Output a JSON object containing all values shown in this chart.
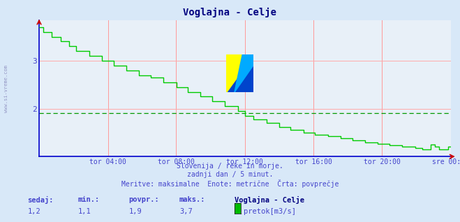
{
  "title": "Voglajna - Celje",
  "bg_color": "#d8e8f8",
  "plot_bg_color": "#e8f0f8",
  "line_color": "#00cc00",
  "avg_line_color": "#009900",
  "avg_value": 1.9,
  "ymin": 1.0,
  "ymax": 3.85,
  "yticks": [
    2,
    3
  ],
  "title_color": "#000080",
  "text_color": "#4444cc",
  "subtitle_lines": [
    "Slovenija / reke in morje.",
    "zadnji dan / 5 minut.",
    "Meritve: maksimalne  Enote: metrične  Črta: povprečje"
  ],
  "footer_labels": [
    "sedaj:",
    "min.:",
    "povpr.:",
    "maks.:"
  ],
  "footer_values": [
    "1,2",
    "1,1",
    "1,9",
    "3,7"
  ],
  "station_name": "Voglajna - Celje",
  "legend_label": "pretok[m3/s]",
  "legend_color": "#00bb00",
  "xtick_labels": [
    "tor 04:00",
    "tor 08:00",
    "tor 12:00",
    "tor 16:00",
    "tor 20:00",
    "sre 00:00"
  ],
  "xtick_positions": [
    0.167,
    0.333,
    0.5,
    0.667,
    0.833,
    1.0
  ],
  "vgrid_color": "#ff9999",
  "hgrid_color": "#ffaaaa",
  "axis_color": "#0000cc",
  "watermark": "www.si-vreme.com",
  "arrow_color": "#cc0000"
}
